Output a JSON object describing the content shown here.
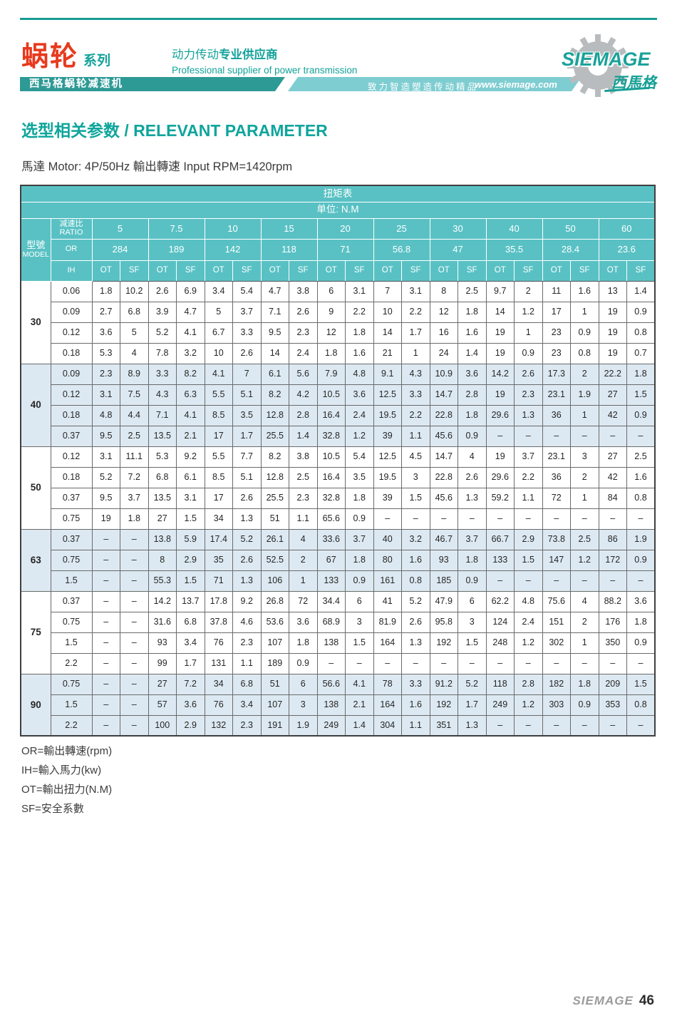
{
  "header": {
    "series_cn": "蜗轮",
    "series_suffix": "系列",
    "product_bar": "西马格蜗轮减速机",
    "supplier_cn_regular": "动力传动",
    "supplier_cn_bold": "专业供应商",
    "supplier_en": "Professional supplier of power transmission",
    "slogan": "致力智造塑造传动精品",
    "website": "www.siemage.com",
    "logo_text": "SIEMAGE",
    "logo_cn": "西馬格"
  },
  "title": {
    "cn": "选型相关参数",
    "en": "/ RELEVANT PARAMETER"
  },
  "subtitle": "馬達 Motor: 4P/50Hz  輸出轉速 Input RPM=1420rpm",
  "table": {
    "caption": "扭矩表",
    "unit": "单位: N.M",
    "model_label_cn": "型號",
    "model_label_en": "MODEL",
    "ratio_label": "减速比RATIO",
    "or_label": "OR",
    "ih_label": "IH",
    "ot_label": "OT",
    "sf_label": "SF",
    "ratios": [
      "5",
      "7.5",
      "10",
      "15",
      "20",
      "25",
      "30",
      "40",
      "50",
      "60"
    ],
    "or_values": [
      "284",
      "189",
      "142",
      "118",
      "71",
      "56.8",
      "47",
      "35.5",
      "28.4",
      "23.6"
    ],
    "groups": [
      {
        "model": "30",
        "rows": [
          {
            "ih": "0.06",
            "v": [
              "1.8",
              "10.2",
              "2.6",
              "6.9",
              "3.4",
              "5.4",
              "4.7",
              "3.8",
              "6",
              "3.1",
              "7",
              "3.1",
              "8",
              "2.5",
              "9.7",
              "2",
              "11",
              "1.6",
              "13",
              "1.4"
            ]
          },
          {
            "ih": "0.09",
            "v": [
              "2.7",
              "6.8",
              "3.9",
              "4.7",
              "5",
              "3.7",
              "7.1",
              "2.6",
              "9",
              "2.2",
              "10",
              "2.2",
              "12",
              "1.8",
              "14",
              "1.2",
              "17",
              "1",
              "19",
              "0.9"
            ]
          },
          {
            "ih": "0.12",
            "v": [
              "3.6",
              "5",
              "5.2",
              "4.1",
              "6.7",
              "3.3",
              "9.5",
              "2.3",
              "12",
              "1.8",
              "14",
              "1.7",
              "16",
              "1.6",
              "19",
              "1",
              "23",
              "0.9",
              "19",
              "0.8"
            ]
          },
          {
            "ih": "0.18",
            "v": [
              "5.3",
              "4",
              "7.8",
              "3.2",
              "10",
              "2.6",
              "14",
              "2.4",
              "1.8",
              "1.6",
              "21",
              "1",
              "24",
              "1.4",
              "19",
              "0.9",
              "23",
              "0.8",
              "19",
              "0.7"
            ]
          }
        ]
      },
      {
        "model": "40",
        "rows": [
          {
            "ih": "0.09",
            "v": [
              "2.3",
              "8.9",
              "3.3",
              "8.2",
              "4.1",
              "7",
              "6.1",
              "5.6",
              "7.9",
              "4.8",
              "9.1",
              "4.3",
              "10.9",
              "3.6",
              "14.2",
              "2.6",
              "17.3",
              "2",
              "22.2",
              "1.8"
            ]
          },
          {
            "ih": "0.12",
            "v": [
              "3.1",
              "7.5",
              "4.3",
              "6.3",
              "5.5",
              "5.1",
              "8.2",
              "4.2",
              "10.5",
              "3.6",
              "12.5",
              "3.3",
              "14.7",
              "2.8",
              "19",
              "2.3",
              "23.1",
              "1.9",
              "27",
              "1.5"
            ]
          },
          {
            "ih": "0.18",
            "v": [
              "4.8",
              "4.4",
              "7.1",
              "4.1",
              "8.5",
              "3.5",
              "12.8",
              "2.8",
              "16.4",
              "2.4",
              "19.5",
              "2.2",
              "22.8",
              "1.8",
              "29.6",
              "1.3",
              "36",
              "1",
              "42",
              "0.9"
            ]
          },
          {
            "ih": "0.37",
            "v": [
              "9.5",
              "2.5",
              "13.5",
              "2.1",
              "17",
              "1.7",
              "25.5",
              "1.4",
              "32.8",
              "1.2",
              "39",
              "1.1",
              "45.6",
              "0.9",
              "–",
              "–",
              "–",
              "–",
              "–",
              "–"
            ]
          }
        ]
      },
      {
        "model": "50",
        "rows": [
          {
            "ih": "0.12",
            "v": [
              "3.1",
              "11.1",
              "5.3",
              "9.2",
              "5.5",
              "7.7",
              "8.2",
              "3.8",
              "10.5",
              "5.4",
              "12.5",
              "4.5",
              "14.7",
              "4",
              "19",
              "3.7",
              "23.1",
              "3",
              "27",
              "2.5"
            ]
          },
          {
            "ih": "0.18",
            "v": [
              "5.2",
              "7.2",
              "6.8",
              "6.1",
              "8.5",
              "5.1",
              "12.8",
              "2.5",
              "16.4",
              "3.5",
              "19.5",
              "3",
              "22.8",
              "2.6",
              "29.6",
              "2.2",
              "36",
              "2",
              "42",
              "1.6"
            ]
          },
          {
            "ih": "0.37",
            "v": [
              "9.5",
              "3.7",
              "13.5",
              "3.1",
              "17",
              "2.6",
              "25.5",
              "2.3",
              "32.8",
              "1.8",
              "39",
              "1.5",
              "45.6",
              "1.3",
              "59.2",
              "1.1",
              "72",
              "1",
              "84",
              "0.8"
            ]
          },
          {
            "ih": "0.75",
            "v": [
              "19",
              "1.8",
              "27",
              "1.5",
              "34",
              "1.3",
              "51",
              "1.1",
              "65.6",
              "0.9",
              "–",
              "–",
              "–",
              "–",
              "–",
              "–",
              "–",
              "–",
              "–",
              "–"
            ]
          }
        ]
      },
      {
        "model": "63",
        "rows": [
          {
            "ih": "0.37",
            "v": [
              "–",
              "–",
              "13.8",
              "5.9",
              "17.4",
              "5.2",
              "26.1",
              "4",
              "33.6",
              "3.7",
              "40",
              "3.2",
              "46.7",
              "3.7",
              "66.7",
              "2.9",
              "73.8",
              "2.5",
              "86",
              "1.9"
            ]
          },
          {
            "ih": "0.75",
            "v": [
              "–",
              "–",
              "8",
              "2.9",
              "35",
              "2.6",
              "52.5",
              "2",
              "67",
              "1.8",
              "80",
              "1.6",
              "93",
              "1.8",
              "133",
              "1.5",
              "147",
              "1.2",
              "172",
              "0.9"
            ]
          },
          {
            "ih": "1.5",
            "v": [
              "–",
              "–",
              "55.3",
              "1.5",
              "71",
              "1.3",
              "106",
              "1",
              "133",
              "0.9",
              "161",
              "0.8",
              "185",
              "0.9",
              "–",
              "–",
              "–",
              "–",
              "–",
              "–"
            ]
          }
        ]
      },
      {
        "model": "75",
        "rows": [
          {
            "ih": "0.37",
            "v": [
              "–",
              "–",
              "14.2",
              "13.7",
              "17.8",
              "9.2",
              "26.8",
              "72",
              "34.4",
              "6",
              "41",
              "5.2",
              "47.9",
              "6",
              "62.2",
              "4.8",
              "75.6",
              "4",
              "88.2",
              "3.6"
            ]
          },
          {
            "ih": "0.75",
            "v": [
              "–",
              "–",
              "31.6",
              "6.8",
              "37.8",
              "4.6",
              "53.6",
              "3.6",
              "68.9",
              "3",
              "81.9",
              "2.6",
              "95.8",
              "3",
              "124",
              "2.4",
              "151",
              "2",
              "176",
              "1.8"
            ]
          },
          {
            "ih": "1.5",
            "v": [
              "–",
              "–",
              "93",
              "3.4",
              "76",
              "2.3",
              "107",
              "1.8",
              "138",
              "1.5",
              "164",
              "1.3",
              "192",
              "1.5",
              "248",
              "1.2",
              "302",
              "1",
              "350",
              "0.9"
            ]
          },
          {
            "ih": "2.2",
            "v": [
              "–",
              "–",
              "99",
              "1.7",
              "131",
              "1.1",
              "189",
              "0.9",
              "–",
              "–",
              "–",
              "–",
              "–",
              "–",
              "–",
              "–",
              "–",
              "–",
              "–",
              "–"
            ]
          }
        ]
      },
      {
        "model": "90",
        "rows": [
          {
            "ih": "0.75",
            "v": [
              "–",
              "–",
              "27",
              "7.2",
              "34",
              "6.8",
              "51",
              "6",
              "56.6",
              "4.1",
              "78",
              "3.3",
              "91.2",
              "5.2",
              "118",
              "2.8",
              "182",
              "1.8",
              "209",
              "1.5"
            ]
          },
          {
            "ih": "1.5",
            "v": [
              "–",
              "–",
              "57",
              "3.6",
              "76",
              "3.4",
              "107",
              "3",
              "138",
              "2.1",
              "164",
              "1.6",
              "192",
              "1.7",
              "249",
              "1.2",
              "303",
              "0.9",
              "353",
              "0.8"
            ]
          },
          {
            "ih": "2.2",
            "v": [
              "–",
              "–",
              "100",
              "2.9",
              "132",
              "2.3",
              "191",
              "1.9",
              "249",
              "1.4",
              "304",
              "1.1",
              "351",
              "1.3",
              "–",
              "–",
              "–",
              "–",
              "–",
              "–"
            ]
          }
        ]
      }
    ]
  },
  "legend": [
    "OR=輸出轉速(rpm)",
    "IH=輸入馬力(kw)",
    "OT=輸出扭力(N.M)",
    "SF=安全系數"
  ],
  "footer": {
    "brand": "SIEMAGE",
    "page": "46"
  },
  "colors": {
    "teal_header": "#59c1c4",
    "teal_dark": "#2e9a96",
    "teal_band": "#7ecdd1",
    "accent_text": "#12a29a",
    "brand_red": "#e8391d",
    "row_tint": "#dde9f2"
  }
}
